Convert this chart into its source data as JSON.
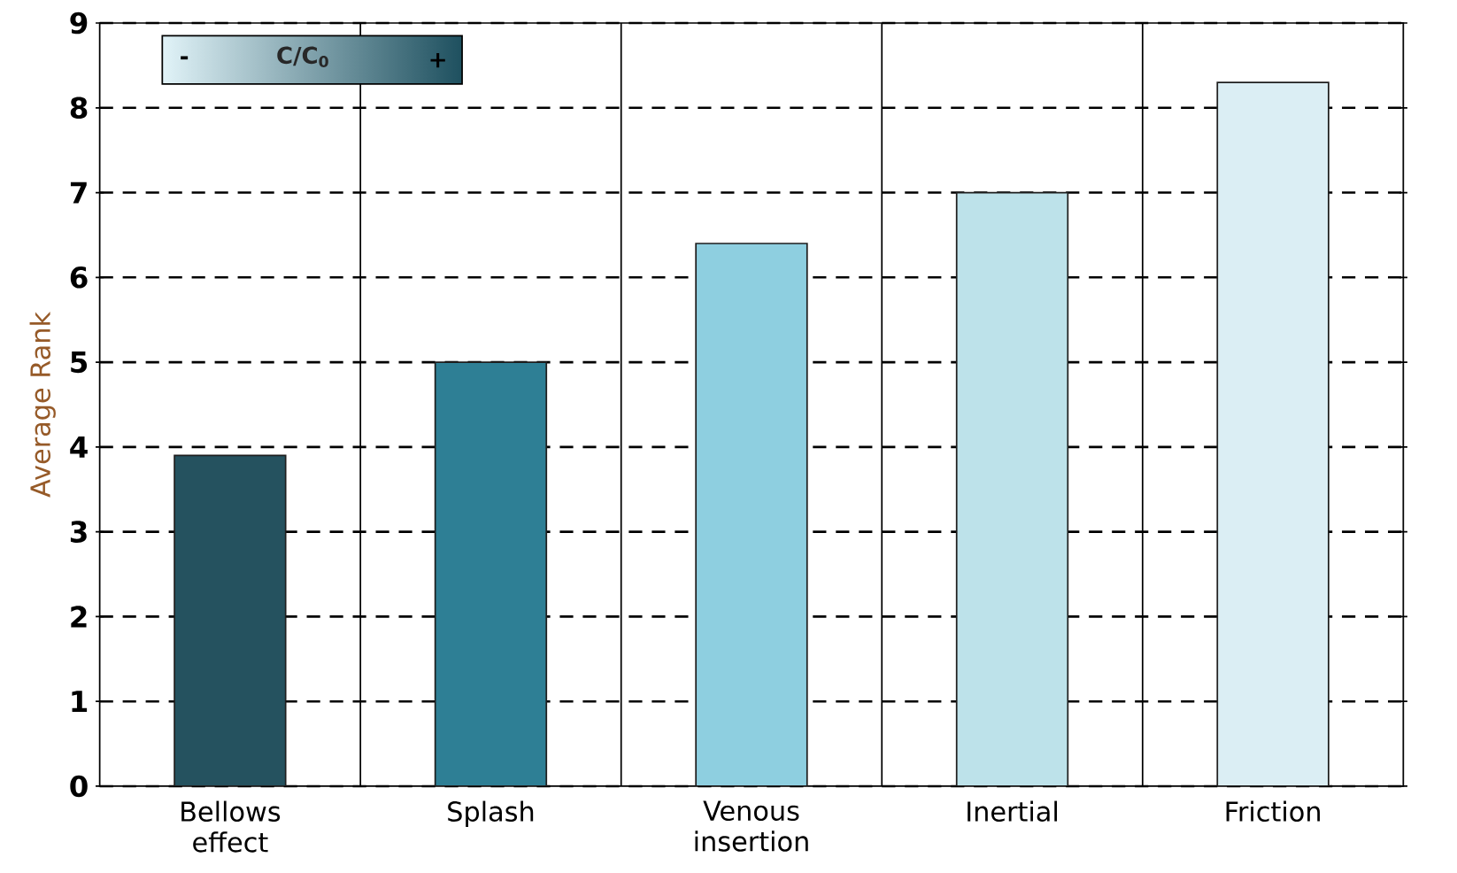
{
  "chart_data": {
    "type": "bar",
    "ylabel": "Average Rank",
    "categories": [
      "Bellows effect",
      "Splash",
      "Venous insertion",
      "Inertial",
      "Friction"
    ],
    "values": [
      3.9,
      5.0,
      6.4,
      7.0,
      8.3
    ],
    "colors": [
      "#25525f",
      "#2e7f95",
      "#8ecfe0",
      "#bde2ea",
      "#dbeef4"
    ],
    "ylim": [
      0,
      9
    ],
    "yticks": [
      0,
      1,
      2,
      3,
      4,
      5,
      6,
      7,
      8,
      9
    ],
    "grid": true,
    "annotations": [
      "-",
      "C/C$_{0}$",
      "+"
    ]
  }
}
